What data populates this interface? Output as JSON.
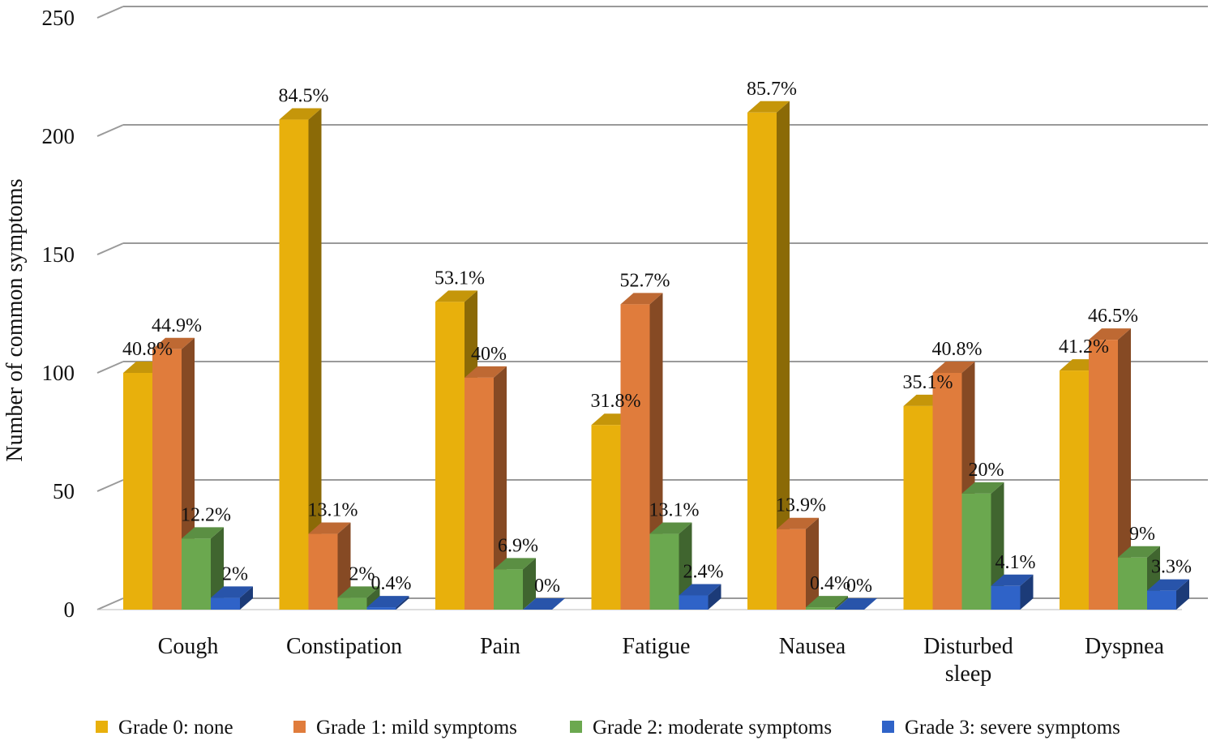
{
  "chart_data": {
    "type": "bar",
    "title": "",
    "xlabel": "",
    "ylabel": "Number of common symptoms",
    "ylim": [
      0,
      250
    ],
    "yticks": [
      0,
      50,
      100,
      150,
      200,
      250
    ],
    "grid": true,
    "legend": "bottom",
    "categories": [
      [
        "Cough"
      ],
      [
        "Constipation"
      ],
      [
        "Pain"
      ],
      [
        "Fatigue"
      ],
      [
        "Nausea"
      ],
      [
        "Disturbed",
        "sleep"
      ],
      [
        "Dyspnea"
      ]
    ],
    "series": [
      {
        "name": "Grade 0: none",
        "color": "#E8B00C",
        "values": [
          100,
          207,
          130,
          78,
          210,
          86,
          101
        ],
        "labels": [
          "40.8%",
          "84.5%",
          "53.1%",
          "31.8%",
          "85.7%",
          "35.1%",
          "41.2%"
        ]
      },
      {
        "name": "Grade 1: mild symptoms",
        "color": "#E07C3C",
        "values": [
          110,
          32,
          98,
          129,
          34,
          100,
          114
        ],
        "labels": [
          "44.9%",
          "13.1%",
          "40%",
          "52.7%",
          "13.9%",
          "40.8%",
          "46.5%"
        ]
      },
      {
        "name": "Grade 2: moderate symptoms",
        "color": "#6BA84F",
        "values": [
          30,
          5,
          17,
          32,
          1,
          49,
          22
        ],
        "labels": [
          "12.2%",
          "2%",
          "6.9%",
          "13.1%",
          "0.4%",
          "20%",
          "9%"
        ]
      },
      {
        "name": "Grade 3: severe symptoms",
        "color": "#2F63C8",
        "values": [
          5,
          1,
          0,
          6,
          0,
          10,
          8
        ],
        "labels": [
          "2%",
          "0.4%",
          "0%",
          "2.4%",
          "0%",
          "4.1%",
          "3.3%"
        ]
      }
    ]
  }
}
